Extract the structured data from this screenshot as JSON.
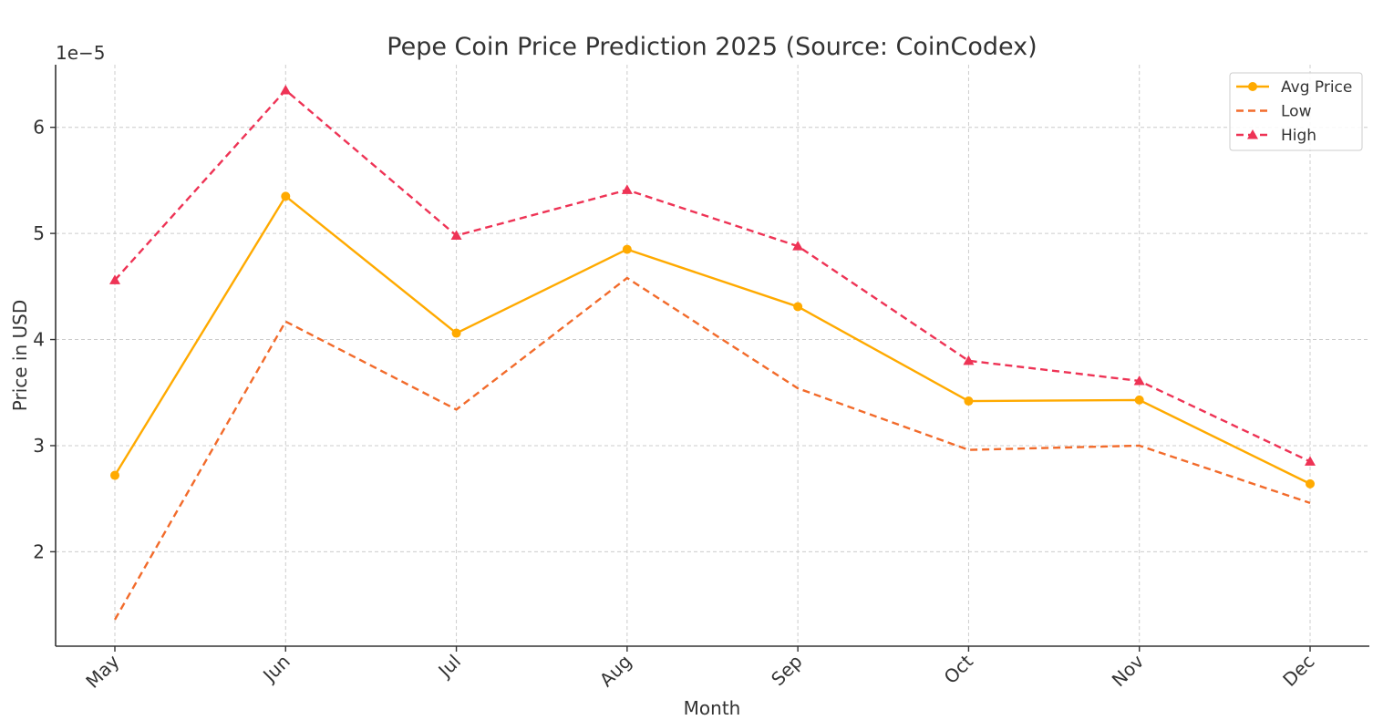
{
  "chart_data": {
    "type": "line",
    "title": "Pepe Coin Price Prediction 2025 (Source: CoinCodex)",
    "xlabel": "Month",
    "ylabel": "Price in USD",
    "y_offset_label": "1e−5",
    "categories": [
      "May",
      "Jun",
      "Jul",
      "Aug",
      "Sep",
      "Oct",
      "Nov",
      "Dec"
    ],
    "ylim": [
      1.11e-05,
      6.59e-05
    ],
    "yticks": [
      2e-05,
      3e-05,
      4e-05,
      5e-05,
      6e-05
    ],
    "ytick_labels": [
      "2",
      "3",
      "4",
      "5",
      "6"
    ],
    "grid": true,
    "legend_position": "top-right",
    "series": [
      {
        "name": "Avg Price",
        "color": "#FFAA00",
        "line_style": "solid",
        "marker": "circle",
        "values": [
          2.72e-05,
          5.35e-05,
          4.06e-05,
          4.85e-05,
          4.31e-05,
          3.42e-05,
          3.43e-05,
          2.64e-05
        ]
      },
      {
        "name": "Low",
        "color": "#F26B2B",
        "line_style": "dashed",
        "marker": "none",
        "values": [
          1.36e-05,
          4.17e-05,
          3.34e-05,
          4.58e-05,
          3.54e-05,
          2.96e-05,
          3e-05,
          2.46e-05
        ]
      },
      {
        "name": "High",
        "color": "#EE3355",
        "line_style": "dashed",
        "marker": "triangle",
        "values": [
          4.56e-05,
          6.35e-05,
          4.98e-05,
          5.41e-05,
          4.88e-05,
          3.8e-05,
          3.61e-05,
          2.85e-05
        ]
      }
    ]
  }
}
